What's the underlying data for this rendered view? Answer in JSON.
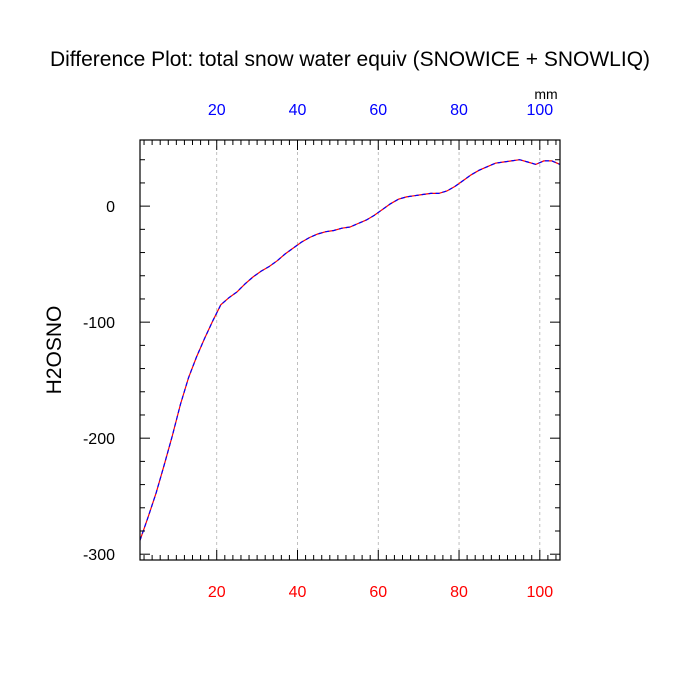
{
  "chart_data": {
    "type": "line",
    "title": "Difference Plot: total snow water equiv (SNOWICE + SNOWLIQ)",
    "ylabel": "H2OSNO",
    "top_axis_unit": "mm",
    "xlim": [
      1,
      105
    ],
    "ylim": [
      -305,
      57
    ],
    "grid": "vertical dashed lines at x ticks",
    "x_ticks_bottom": [
      20,
      40,
      60,
      80,
      100
    ],
    "x_ticks_top": [
      20,
      40,
      60,
      80,
      100
    ],
    "y_ticks": [
      0,
      -100,
      -200,
      -300
    ],
    "colors": {
      "bottom_tick_labels": "#ff0000",
      "top_tick_labels": "#0000ff",
      "series_a": "#ff0000",
      "series_b": "#0000ff"
    },
    "series": [
      {
        "x": [
          1,
          3,
          5,
          7,
          9,
          11,
          13,
          15,
          17,
          19,
          21,
          23,
          25,
          27,
          29,
          31,
          33,
          35,
          37,
          39,
          41,
          43,
          45,
          47,
          49,
          51,
          53,
          55,
          57,
          59,
          61,
          63,
          65,
          67,
          69,
          71,
          73,
          75,
          77,
          79,
          81,
          83,
          85,
          87,
          89,
          91,
          93,
          95,
          97,
          99,
          101,
          103,
          105
        ],
        "values": [
          -288,
          -268,
          -247,
          -223,
          -198,
          -171,
          -148,
          -130,
          -114,
          -99,
          -85,
          -79,
          -74,
          -67,
          -61,
          -56,
          -52,
          -47,
          -41,
          -36,
          -31,
          -27,
          -24,
          -22,
          -21,
          -19,
          -18,
          -15,
          -12,
          -8,
          -3,
          2,
          6,
          8,
          9,
          10,
          11,
          11,
          13,
          17,
          22,
          27,
          31,
          34,
          37,
          38,
          39,
          40,
          38,
          36,
          39,
          39,
          36
        ]
      }
    ]
  }
}
